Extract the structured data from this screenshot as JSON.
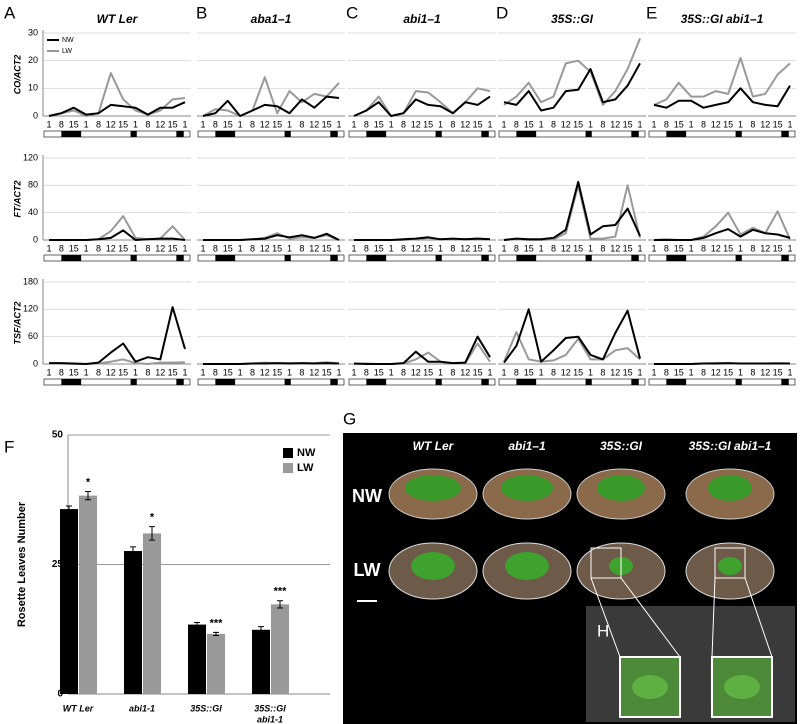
{
  "panel_labels": [
    "A",
    "B",
    "C",
    "D",
    "E",
    "F",
    "G"
  ],
  "chart_data": [
    {
      "type": "line",
      "title": "WT Ler",
      "ylabel": "CO/ACT2",
      "categories": [
        "1",
        "8",
        "15",
        "1",
        "8",
        "12",
        "15",
        "1",
        "8",
        "12",
        "15",
        "1"
      ],
      "ylim": [
        0,
        30
      ],
      "yticks": [
        0,
        10,
        20,
        30
      ],
      "ytick_labels": true,
      "grid": true,
      "legend": "upper left",
      "series": [
        {
          "name": "NW",
          "color": "#000000",
          "values": [
            0,
            1,
            3,
            0.5,
            1,
            4,
            3.5,
            3,
            0.5,
            3,
            3,
            5
          ]
        },
        {
          "name": "LW",
          "color": "#999999",
          "values": [
            0,
            1,
            2,
            0,
            1,
            15.5,
            6,
            2,
            0.5,
            2,
            6,
            6.5
          ]
        }
      ]
    },
    {
      "type": "line",
      "title": "aba1–1",
      "categories": [
        "1",
        "8",
        "15",
        "1",
        "8",
        "12",
        "15",
        "1",
        "8",
        "12",
        "15",
        "1"
      ],
      "ylim": [
        0,
        30
      ],
      "yticks": [
        0,
        10,
        20,
        30
      ],
      "ytick_labels": false,
      "grid": true,
      "series": [
        {
          "color": "#000000",
          "values": [
            0,
            1,
            5.5,
            0,
            2,
            4,
            3.5,
            1,
            6,
            3,
            7,
            6.5
          ]
        },
        {
          "color": "#999999",
          "values": [
            0,
            2.5,
            2,
            0,
            2,
            14,
            1,
            9,
            5,
            8,
            7,
            12
          ]
        }
      ]
    },
    {
      "type": "line",
      "title": "abi1–1",
      "categories": [
        "1",
        "8",
        "15",
        "1",
        "8",
        "12",
        "15",
        "1",
        "8",
        "12",
        "15",
        "1"
      ],
      "ylim": [
        0,
        30
      ],
      "yticks": [
        0,
        10,
        20,
        30
      ],
      "ytick_labels": false,
      "grid": true,
      "series": [
        {
          "color": "#000000",
          "values": [
            0,
            2,
            5,
            0,
            1,
            6,
            4,
            3.5,
            1,
            5,
            4,
            7
          ]
        },
        {
          "color": "#999999",
          "values": [
            0,
            2,
            7,
            0,
            1,
            9,
            8.5,
            5,
            1,
            5,
            10,
            9
          ]
        }
      ]
    },
    {
      "type": "line",
      "title": "35S::GI",
      "categories": [
        "1",
        "8",
        "15",
        "1",
        "8",
        "12",
        "15",
        "1",
        "8",
        "12",
        "15",
        "1"
      ],
      "ylim": [
        0,
        30
      ],
      "yticks": [
        0,
        10,
        20,
        30
      ],
      "ytick_labels": false,
      "grid": true,
      "series": [
        {
          "color": "#000000",
          "values": [
            5,
            4,
            9,
            2,
            3,
            9,
            9.5,
            17,
            5,
            6,
            11,
            19
          ]
        },
        {
          "color": "#999999",
          "values": [
            4,
            7,
            12,
            5,
            7,
            19,
            20,
            16,
            4,
            9,
            17,
            28
          ]
        }
      ]
    },
    {
      "type": "line",
      "title": "35S::GI abi1–1",
      "categories": [
        "1",
        "8",
        "15",
        "1",
        "8",
        "12",
        "15",
        "1",
        "8",
        "12",
        "15",
        "1"
      ],
      "ylim": [
        0,
        30
      ],
      "yticks": [
        0,
        10,
        20,
        30
      ],
      "ytick_labels": false,
      "grid": true,
      "series": [
        {
          "color": "#000000",
          "values": [
            4,
            3,
            5.5,
            5.5,
            3,
            4,
            5,
            10,
            5,
            4,
            3.5,
            11
          ]
        },
        {
          "color": "#999999",
          "values": [
            4,
            6,
            12,
            7,
            7,
            9,
            8,
            21,
            7,
            8,
            15,
            19
          ]
        }
      ]
    },
    {
      "type": "line",
      "ylabel": "FT/ACT2",
      "categories": [
        "1",
        "8",
        "15",
        "1",
        "8",
        "12",
        "15",
        "1",
        "8",
        "12",
        "15",
        "1"
      ],
      "ylim": [
        0,
        120
      ],
      "yticks": [
        0,
        40,
        80,
        120
      ],
      "ytick_labels": true,
      "grid": true,
      "series": [
        {
          "color": "#000000",
          "values": [
            0,
            0,
            0,
            0,
            1,
            3,
            14,
            0,
            1,
            2,
            2,
            0
          ]
        },
        {
          "color": "#999999",
          "values": [
            0,
            0,
            0,
            0,
            1,
            13,
            35,
            3,
            1,
            2,
            20,
            0
          ]
        }
      ]
    },
    {
      "type": "line",
      "categories": [
        "1",
        "8",
        "15",
        "1",
        "8",
        "12",
        "15",
        "1",
        "8",
        "12",
        "15",
        "1"
      ],
      "ylim": [
        0,
        120
      ],
      "yticks": [
        0,
        40,
        80,
        120
      ],
      "ytick_labels": false,
      "grid": true,
      "series": [
        {
          "color": "#000000",
          "values": [
            0,
            0,
            0,
            0,
            1,
            2,
            7,
            4,
            7,
            3,
            9,
            0
          ]
        },
        {
          "color": "#999999",
          "values": [
            0,
            0,
            0,
            0,
            1,
            3,
            10,
            2,
            4,
            3,
            7,
            0
          ]
        }
      ]
    },
    {
      "type": "line",
      "categories": [
        "1",
        "8",
        "15",
        "1",
        "8",
        "12",
        "15",
        "1",
        "8",
        "12",
        "15",
        "1"
      ],
      "ylim": [
        0,
        120
      ],
      "yticks": [
        0,
        40,
        80,
        120
      ],
      "ytick_labels": false,
      "grid": true,
      "series": [
        {
          "color": "#000000",
          "values": [
            0,
            0,
            0,
            0,
            1,
            2,
            4,
            1,
            2,
            1,
            2,
            1
          ]
        },
        {
          "color": "#999999",
          "values": [
            0,
            0,
            0,
            0,
            0,
            1,
            3,
            1,
            1,
            1,
            2,
            1
          ]
        }
      ]
    },
    {
      "type": "line",
      "categories": [
        "1",
        "8",
        "15",
        "1",
        "8",
        "12",
        "15",
        "1",
        "8",
        "12",
        "15",
        "1"
      ],
      "ylim": [
        0,
        120
      ],
      "yticks": [
        0,
        40,
        80,
        120
      ],
      "ytick_labels": false,
      "grid": true,
      "series": [
        {
          "color": "#000000",
          "values": [
            0,
            2,
            1,
            1,
            3,
            15,
            85,
            8,
            20,
            22,
            46,
            6
          ]
        },
        {
          "color": "#999999",
          "values": [
            0,
            1,
            0,
            0,
            1,
            10,
            80,
            2,
            2,
            5,
            80,
            3
          ]
        }
      ]
    },
    {
      "type": "line",
      "categories": [
        "1",
        "8",
        "15",
        "1",
        "8",
        "12",
        "15",
        "1",
        "8",
        "12",
        "15",
        "1"
      ],
      "ylim": [
        0,
        120
      ],
      "yticks": [
        0,
        40,
        80,
        120
      ],
      "ytick_labels": false,
      "grid": true,
      "series": [
        {
          "color": "#000000",
          "values": [
            0,
            0,
            0,
            0,
            3,
            10,
            16,
            5,
            15,
            10,
            8,
            3
          ]
        },
        {
          "color": "#999999",
          "values": [
            0,
            1,
            0,
            0,
            5,
            20,
            40,
            8,
            18,
            10,
            42,
            1
          ]
        }
      ]
    },
    {
      "type": "line",
      "ylabel": "TSF/ACT2",
      "categories": [
        "1",
        "8",
        "15",
        "1",
        "8",
        "12",
        "15",
        "1",
        "8",
        "12",
        "15",
        "1"
      ],
      "ylim": [
        0,
        180
      ],
      "yticks": [
        0,
        60,
        120,
        180
      ],
      "ytick_labels": true,
      "grid": true,
      "series": [
        {
          "color": "#000000",
          "values": [
            2,
            2,
            1,
            0,
            3,
            25,
            45,
            5,
            15,
            10,
            125,
            33
          ]
        },
        {
          "color": "#999999",
          "values": [
            1,
            1,
            0,
            0,
            1,
            5,
            10,
            2,
            0,
            3,
            3,
            4
          ]
        }
      ]
    },
    {
      "type": "line",
      "categories": [
        "1",
        "8",
        "15",
        "1",
        "8",
        "12",
        "15",
        "1",
        "8",
        "12",
        "15",
        "1"
      ],
      "ylim": [
        0,
        180
      ],
      "yticks": [
        0,
        60,
        120,
        180
      ],
      "ytick_labels": false,
      "grid": true,
      "series": [
        {
          "color": "#000000",
          "values": [
            0,
            0,
            0,
            0,
            1,
            1,
            2,
            1,
            2,
            1,
            2,
            1
          ]
        },
        {
          "color": "#999999",
          "values": [
            0,
            0,
            0,
            0,
            1,
            3,
            1,
            2,
            1,
            2,
            4,
            1
          ]
        }
      ]
    },
    {
      "type": "line",
      "categories": [
        "1",
        "8",
        "15",
        "1",
        "8",
        "12",
        "15",
        "1",
        "8",
        "12",
        "15",
        "1"
      ],
      "ylim": [
        0,
        180
      ],
      "yticks": [
        0,
        60,
        120,
        180
      ],
      "ytick_labels": false,
      "grid": true,
      "series": [
        {
          "color": "#000000",
          "values": [
            1,
            0,
            0,
            0,
            2,
            27,
            5,
            5,
            2,
            3,
            60,
            15
          ]
        },
        {
          "color": "#999999",
          "values": [
            0,
            1,
            0,
            0,
            1,
            10,
            25,
            5,
            1,
            2,
            45,
            5
          ]
        }
      ]
    },
    {
      "type": "line",
      "categories": [
        "1",
        "8",
        "15",
        "1",
        "8",
        "12",
        "15",
        "1",
        "8",
        "12",
        "15",
        "1"
      ],
      "ylim": [
        0,
        180
      ],
      "yticks": [
        0,
        60,
        120,
        180
      ],
      "ytick_labels": false,
      "grid": true,
      "series": [
        {
          "color": "#000000",
          "values": [
            3,
            40,
            120,
            5,
            30,
            57,
            60,
            20,
            10,
            68,
            117,
            12
          ]
        },
        {
          "color": "#999999",
          "values": [
            5,
            70,
            10,
            5,
            8,
            20,
            55,
            10,
            10,
            30,
            35,
            10
          ]
        }
      ]
    },
    {
      "type": "line",
      "categories": [
        "1",
        "8",
        "15",
        "1",
        "8",
        "12",
        "15",
        "1",
        "8",
        "12",
        "15",
        "1"
      ],
      "ylim": [
        0,
        180
      ],
      "yticks": [
        0,
        60,
        120,
        180
      ],
      "ytick_labels": false,
      "grid": true,
      "series": [
        {
          "color": "#000000",
          "values": [
            0,
            0,
            0,
            0,
            1,
            1,
            2,
            1,
            1,
            1,
            1,
            1
          ]
        },
        {
          "color": "#999999",
          "values": [
            0,
            0,
            0,
            0,
            1,
            2,
            1,
            1,
            1,
            1,
            2,
            1
          ]
        }
      ]
    },
    {
      "type": "bar",
      "ylabel": "Rosette Leaves Number",
      "categories": [
        "WT Ler",
        "abi1-1",
        "35S::GI",
        [
          "35S::GI",
          "abi1-1"
        ]
      ],
      "ylim": [
        0,
        50
      ],
      "yticks": [
        0,
        25,
        50
      ],
      "grid": true,
      "legend": "upper right",
      "series": [
        {
          "name": "NW",
          "color": "#000000",
          "values": [
            35.7,
            27.6,
            13.4,
            12.4
          ],
          "errors": [
            0.6,
            0.8,
            0.4,
            0.6
          ]
        },
        {
          "name": "LW",
          "color": "#999999",
          "values": [
            38.3,
            31,
            11.6,
            17.3
          ],
          "errors": [
            0.8,
            1.3,
            0.3,
            0.7
          ],
          "annotations": [
            "*",
            "*",
            "***",
            "***"
          ]
        }
      ]
    }
  ],
  "photo": {
    "columns": [
      "WT Ler",
      "abi1–1",
      "35S::GI",
      "35S::GI abi1–1"
    ],
    "rows": [
      "NW",
      "LW"
    ],
    "inset_label": "H"
  }
}
